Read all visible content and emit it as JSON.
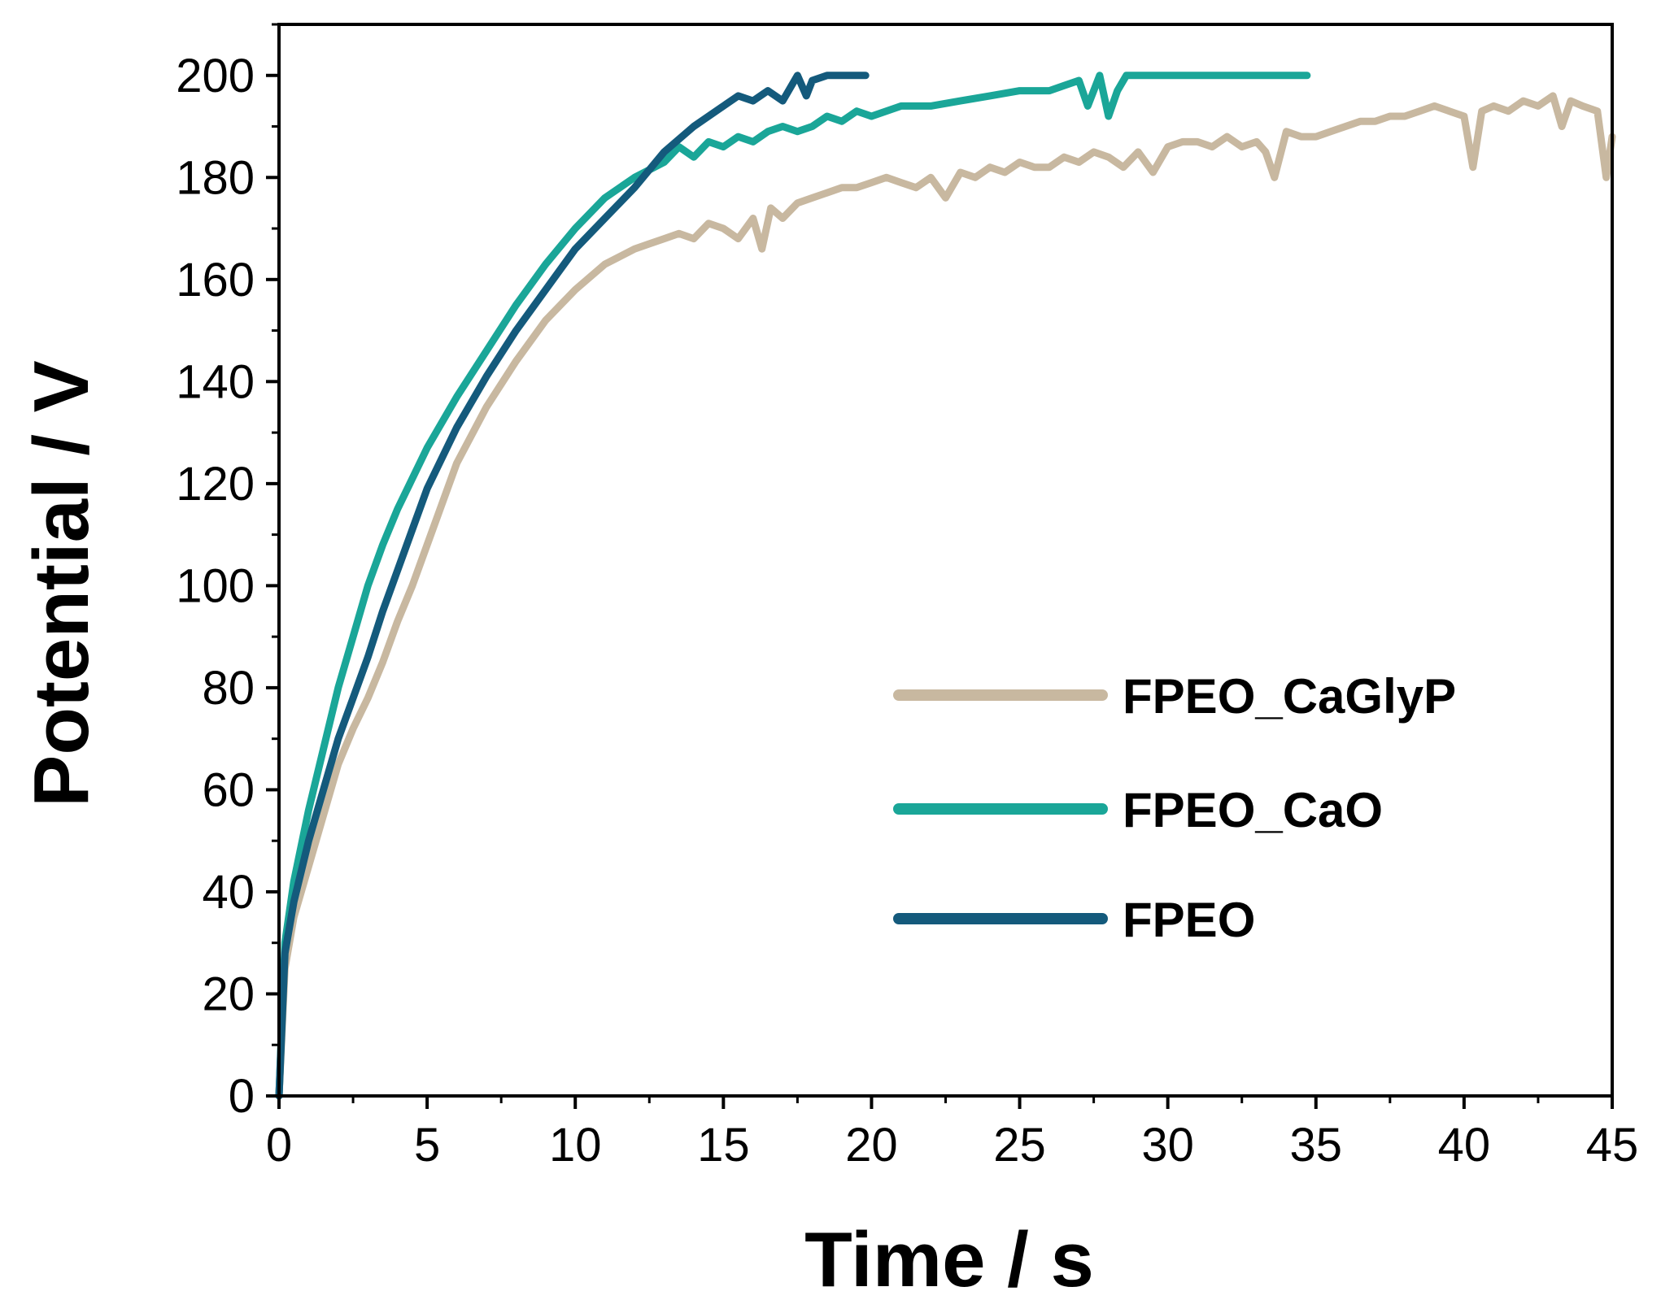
{
  "chart_data": {
    "type": "line",
    "title": "",
    "xlabel": "Time / s",
    "ylabel": "Potential / V",
    "xlim": [
      0,
      45
    ],
    "ylim": [
      0,
      210
    ],
    "xticks": [
      0,
      5,
      10,
      15,
      20,
      25,
      30,
      35,
      40,
      45
    ],
    "yticks": [
      0,
      20,
      40,
      60,
      80,
      100,
      120,
      140,
      160,
      180,
      200
    ],
    "grid": false,
    "legend_position": "lower-right",
    "series": [
      {
        "name": "FPEO_CaGlyP",
        "color": "#c8b8a0",
        "x": [
          0,
          0.2,
          0.5,
          1,
          1.5,
          2,
          2.5,
          3,
          3.5,
          4,
          4.5,
          5,
          5.5,
          6,
          7,
          8,
          9,
          10,
          11,
          12,
          12.5,
          13,
          13.5,
          14,
          14.5,
          15,
          15.5,
          16,
          16.3,
          16.6,
          17,
          17.5,
          18,
          18.5,
          19,
          19.5,
          20,
          20.5,
          21,
          21.5,
          22,
          22.5,
          23,
          23.5,
          24,
          24.5,
          25,
          25.5,
          26,
          26.5,
          27,
          27.5,
          28,
          28.5,
          29,
          29.5,
          30,
          30.5,
          31,
          31.5,
          32,
          32.5,
          33,
          33.3,
          33.6,
          34,
          34.5,
          35,
          35.5,
          36,
          36.5,
          37,
          37.5,
          38,
          38.5,
          39,
          39.5,
          40,
          40.3,
          40.6,
          41,
          41.5,
          42,
          42.5,
          43,
          43.3,
          43.6,
          44,
          44.5,
          44.8,
          45
        ],
        "values": [
          0,
          25,
          35,
          45,
          55,
          65,
          72,
          78,
          85,
          93,
          100,
          108,
          116,
          124,
          135,
          144,
          152,
          158,
          163,
          166,
          167,
          168,
          169,
          168,
          171,
          170,
          168,
          172,
          166,
          174,
          172,
          175,
          176,
          177,
          178,
          178,
          179,
          180,
          179,
          178,
          180,
          176,
          181,
          180,
          182,
          181,
          183,
          182,
          182,
          184,
          183,
          185,
          184,
          182,
          185,
          181,
          186,
          187,
          187,
          186,
          188,
          186,
          187,
          185,
          180,
          189,
          188,
          188,
          189,
          190,
          191,
          191,
          192,
          192,
          193,
          194,
          193,
          192,
          182,
          193,
          194,
          193,
          195,
          194,
          196,
          190,
          195,
          194,
          193,
          180,
          188
        ]
      },
      {
        "name": "FPEO_CaO",
        "color": "#1aa698",
        "x": [
          0,
          0.2,
          0.5,
          1,
          1.5,
          2,
          2.5,
          3,
          3.5,
          4,
          4.5,
          5,
          6,
          7,
          8,
          9,
          10,
          11,
          12,
          13,
          13.5,
          14,
          14.5,
          15,
          15.5,
          16,
          16.5,
          17,
          17.5,
          18,
          18.5,
          19,
          19.5,
          20,
          21,
          22,
          23,
          24,
          25,
          26,
          26.5,
          27,
          27.3,
          27.7,
          28,
          28.3,
          28.6,
          29,
          30,
          31,
          32,
          33,
          34,
          34.7
        ],
        "values": [
          0,
          30,
          42,
          56,
          68,
          80,
          90,
          100,
          108,
          115,
          121,
          127,
          137,
          146,
          155,
          163,
          170,
          176,
          180,
          183,
          186,
          184,
          187,
          186,
          188,
          187,
          189,
          190,
          189,
          190,
          192,
          191,
          193,
          192,
          194,
          194,
          195,
          196,
          197,
          197,
          198,
          199,
          194,
          200,
          192,
          197,
          200,
          200,
          200,
          200,
          200,
          200,
          200,
          200
        ]
      },
      {
        "name": "FPEO",
        "color": "#145a7c",
        "x": [
          0,
          0.2,
          0.5,
          1,
          1.5,
          2,
          2.5,
          3,
          3.5,
          4,
          4.5,
          5,
          6,
          7,
          8,
          9,
          10,
          11,
          12,
          13,
          14,
          15,
          15.5,
          16,
          16.5,
          17,
          17.5,
          17.8,
          18,
          18.5,
          19,
          19.5,
          19.8
        ],
        "values": [
          0,
          28,
          38,
          50,
          60,
          70,
          78,
          86,
          95,
          103,
          111,
          119,
          131,
          141,
          150,
          158,
          166,
          172,
          178,
          185,
          190,
          194,
          196,
          195,
          197,
          195,
          200,
          196,
          199,
          200,
          200,
          200,
          200
        ]
      }
    ]
  }
}
